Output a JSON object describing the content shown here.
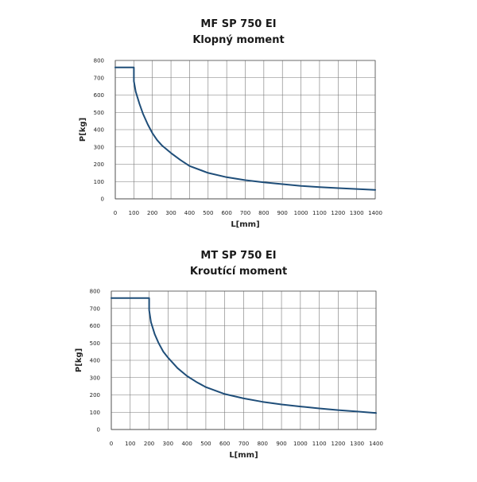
{
  "chart_data": [
    {
      "type": "line",
      "title": "MF SP 750 EI",
      "subtitle": "Klopný moment",
      "xlabel": "L[mm]",
      "ylabel": "P[kg]",
      "xlim": [
        0,
        1400
      ],
      "ylim": [
        0,
        800
      ],
      "xticks": [
        0,
        100,
        200,
        300,
        400,
        500,
        600,
        700,
        800,
        900,
        1000,
        1100,
        1200,
        1300,
        1400
      ],
      "yticks": [
        0,
        100,
        200,
        300,
        400,
        500,
        600,
        700,
        800
      ],
      "grid": true,
      "color": "#1f4e79",
      "x": [
        0,
        100,
        100,
        110,
        130,
        150,
        175,
        200,
        225,
        250,
        300,
        350,
        400,
        500,
        600,
        700,
        800,
        900,
        1000,
        1100,
        1200,
        1300,
        1400
      ],
      "y": [
        760,
        760,
        680,
        620,
        550,
        490,
        430,
        380,
        340,
        310,
        265,
        225,
        190,
        150,
        125,
        108,
        95,
        85,
        75,
        68,
        62,
        57,
        52
      ]
    },
    {
      "type": "line",
      "title": "MT SP 750 EI",
      "subtitle": "Kroutící moment",
      "xlabel": "L[mm]",
      "ylabel": "P[kg]",
      "xlim": [
        0,
        1400
      ],
      "ylim": [
        0,
        800
      ],
      "xticks": [
        0,
        100,
        200,
        300,
        400,
        500,
        600,
        700,
        800,
        900,
        1000,
        1100,
        1200,
        1300,
        1400
      ],
      "yticks": [
        0,
        100,
        200,
        300,
        400,
        500,
        600,
        700,
        800
      ],
      "grid": true,
      "color": "#1f4e79",
      "x": [
        0,
        200,
        200,
        210,
        230,
        250,
        275,
        300,
        350,
        400,
        450,
        500,
        600,
        700,
        800,
        900,
        1000,
        1100,
        1200,
        1300,
        1400
      ],
      "y": [
        760,
        760,
        690,
        620,
        550,
        500,
        450,
        415,
        355,
        310,
        275,
        245,
        205,
        180,
        160,
        145,
        133,
        122,
        112,
        104,
        95
      ]
    }
  ]
}
